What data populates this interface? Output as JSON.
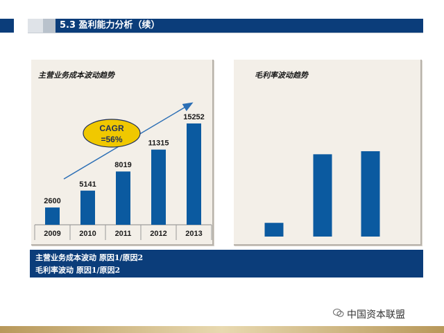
{
  "header": {
    "title": "5.3 盈利能力分析（续）"
  },
  "footer": {
    "box_line1": "主营业务成本波动 原因1/原因2",
    "box_line2": "毛利率波动  原因1/原因2",
    "watermark": "中国资本联盟"
  },
  "colors": {
    "brand": "#0b3d7a",
    "bar": "#0b5aa0",
    "panel": "#f3efe8",
    "badge": "#f0c800"
  },
  "chart_data": [
    {
      "type": "bar",
      "title": "主营业务成本波动趋势",
      "categories": [
        "2009",
        "2010",
        "2011",
        "2012",
        "2013"
      ],
      "values": [
        2600,
        5141,
        8019,
        11315,
        15252
      ],
      "ylim": [
        0,
        16500
      ],
      "annotation": {
        "line1": "CAGR",
        "line2": "=56%"
      },
      "grid": false
    },
    {
      "type": "bar",
      "title": "毛利率波动趋势",
      "categories": [
        "",
        "",
        ""
      ],
      "values": [
        9,
        54,
        56
      ],
      "ylim": [
        0,
        66
      ],
      "grid": false
    }
  ]
}
